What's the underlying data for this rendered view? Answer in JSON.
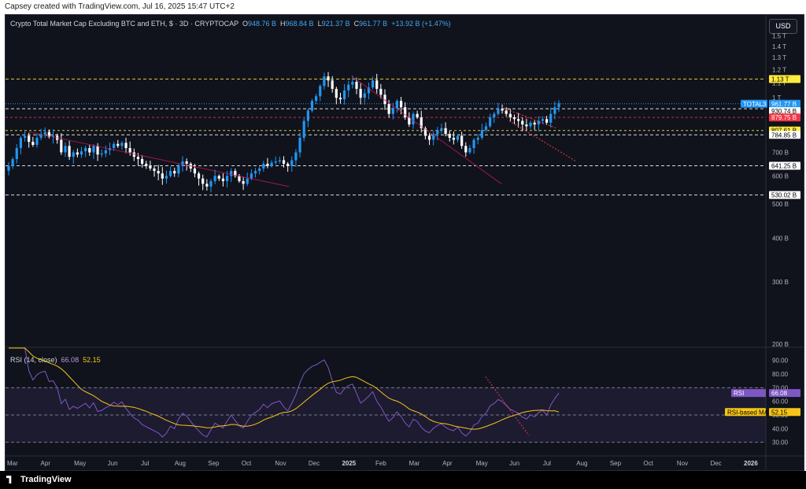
{
  "caption": "Capsey created with TradingView.com, Jul 16, 2025 15:47 UTC+2",
  "footer_brand": "TradingView",
  "currency_button": "USD",
  "header": {
    "title": "Crypto Total Market Cap Excluding BTC and ETH, $ · 3D · CRYPTOCAP",
    "o_label": "O",
    "o_value": "948.76 B",
    "h_label": "H",
    "h_value": "968.84 B",
    "l_label": "L",
    "l_value": "921.37 B",
    "c_label": "C",
    "c_value": "961.77 B",
    "change": "+13.92 B (+1.47%)"
  },
  "rsi_header": {
    "label": "RSI (14, close)",
    "rsi": "66.08",
    "ma": "52.15"
  },
  "colors": {
    "bg": "#10131c",
    "up": "#2196f3",
    "down": "#ffffff",
    "rsi": "#7e57c2",
    "ma": "#f5c518",
    "label_price": "#2196f3",
    "label_red": "#f23645",
    "label_yellow": "#ffeb3b"
  },
  "chart_data": [
    {
      "type": "candlestick",
      "symbol": "TOTAL3",
      "x_ticks": [
        "Mar",
        "Apr",
        "May",
        "Jun",
        "Jul",
        "Aug",
        "Sep",
        "Oct",
        "Nov",
        "Dec",
        "2025",
        "Feb",
        "Mar",
        "Apr",
        "May",
        "Jun",
        "Jul",
        "Aug",
        "Sep",
        "Oct",
        "Nov",
        "Dec",
        "2026"
      ],
      "y_ticks": [
        "1.5 T",
        "1.4 T",
        "1.3 T",
        "1.2 T",
        "1.1 T",
        "1 T",
        "700 B",
        "600 B",
        "500 B",
        "400 B",
        "300 B",
        "200 B"
      ],
      "y_ticks_values": [
        1500,
        1400,
        1300,
        1200,
        1100,
        1000,
        700,
        600,
        500,
        400,
        300,
        200
      ],
      "ylim": [
        200,
        1550
      ],
      "scale": "log",
      "last_price": 961.77,
      "labels": [
        {
          "text": "1.13 T",
          "value": 1130,
          "style": "yellow"
        },
        {
          "text": "TOTAL3",
          "value": 961.77,
          "style": "blue"
        },
        {
          "text": "961.77 B",
          "value": 961.77,
          "style": "blue"
        },
        {
          "text": "1d 11h",
          "value": 940,
          "style": "blue"
        },
        {
          "text": "930.74 B",
          "value": 930.74,
          "style": "white"
        },
        {
          "text": "879.75 B",
          "value": 879.75,
          "style": "red"
        },
        {
          "text": "807.61 B",
          "value": 807.61,
          "style": "yellow"
        },
        {
          "text": "784.85 B",
          "value": 784.85,
          "style": "white"
        },
        {
          "text": "641.25 B",
          "value": 641.25,
          "style": "white"
        },
        {
          "text": "530.02 B",
          "value": 530.02,
          "style": "white"
        }
      ],
      "levels": [
        {
          "value": 1130,
          "color": "#ffeb3b",
          "dash": "4,3"
        },
        {
          "value": 930.74,
          "color": "#ffffff",
          "dash": "4,3"
        },
        {
          "value": 879.75,
          "color": "#f23645",
          "dash": "3,3"
        },
        {
          "value": 807.61,
          "color": "#ffeb3b",
          "dash": "3,3"
        },
        {
          "value": 784.85,
          "color": "#ffffff",
          "dash": "4,3"
        },
        {
          "value": 641.25,
          "color": "#ffffff",
          "dash": "4,3"
        },
        {
          "value": 530.02,
          "color": "#ffffff",
          "dash": "4,3"
        }
      ],
      "closes": [
        640,
        670,
        720,
        770,
        780,
        750,
        735,
        770,
        790,
        800,
        775,
        780,
        760,
        700,
        730,
        680,
        700,
        690,
        705,
        720,
        700,
        730,
        690,
        695,
        710,
        720,
        740,
        730,
        745,
        720,
        700,
        680,
        670,
        650,
        640,
        630,
        620,
        610,
        590,
        600,
        620,
        610,
        640,
        660,
        650,
        630,
        610,
        590,
        570,
        560,
        580,
        600,
        590,
        580,
        600,
        620,
        600,
        580,
        570,
        590,
        610,
        620,
        630,
        650,
        640,
        655,
        660,
        665,
        650,
        640,
        665,
        700,
        770,
        860,
        920,
        980,
        1010,
        1080,
        1150,
        1120,
        1060,
        1000,
        990,
        1050,
        1090,
        1110,
        1060,
        1000,
        1030,
        1070,
        1120,
        1060,
        1020,
        960,
        900,
        930,
        980,
        940,
        880,
        840,
        900,
        880,
        820,
        780,
        760,
        790,
        810,
        820,
        790,
        770,
        760,
        780,
        730,
        700,
        720,
        760,
        770,
        810,
        830,
        880,
        900,
        930,
        920,
        900,
        880,
        870,
        860,
        840,
        830,
        850,
        840,
        860,
        870,
        850,
        900,
        940,
        965
      ],
      "rsi": {
        "ylim": [
          20,
          95
        ],
        "y_ticks": [
          90,
          80,
          70,
          60,
          50,
          40,
          30
        ],
        "bands": [
          70,
          50,
          30
        ],
        "rsi_last": 66.08,
        "ma_last": 52.15,
        "label_rsi": "RSI",
        "label_rsi_value": "66.08",
        "label_ma": "RSI-based MA",
        "label_ma_value": "52.15"
      }
    }
  ]
}
